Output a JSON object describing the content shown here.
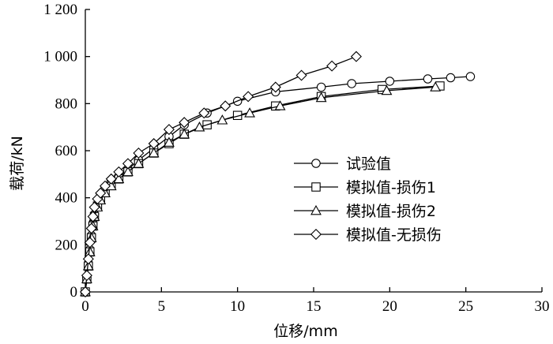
{
  "chart_data": {
    "type": "line",
    "xlabel": "位移/mm",
    "ylabel": "载荷/kN",
    "xlim": [
      0,
      30
    ],
    "ylim": [
      0,
      1200
    ],
    "xticks": [
      0,
      5,
      10,
      15,
      20,
      25,
      30
    ],
    "xtick_labels": [
      "0",
      "5",
      "10",
      "15",
      "20",
      "25",
      "30"
    ],
    "yticks": [
      0,
      200,
      400,
      600,
      800,
      1000,
      1200
    ],
    "ytick_labels": [
      "0",
      "200",
      "400",
      "600",
      "800",
      "1 000",
      "1 200"
    ],
    "grid": false,
    "legend_position": "center-right",
    "series": [
      {
        "name": "试验值",
        "marker": "circle",
        "x": [
          0,
          0.1,
          0.2,
          0.3,
          0.4,
          0.5,
          0.6,
          0.8,
          1.0,
          1.3,
          1.7,
          2.2,
          2.8,
          3.5,
          4.5,
          5.5,
          6.5,
          8.0,
          10.0,
          12.5,
          15.5,
          17.5,
          20.0,
          22.5,
          24.0,
          25.3
        ],
        "y": [
          0,
          60,
          120,
          180,
          240,
          290,
          330,
          370,
          400,
          430,
          460,
          490,
          520,
          560,
          610,
          660,
          710,
          760,
          810,
          850,
          870,
          885,
          895,
          905,
          910,
          915
        ]
      },
      {
        "name": "模拟值-损伤1",
        "marker": "square",
        "x": [
          0,
          0.1,
          0.2,
          0.3,
          0.4,
          0.5,
          0.6,
          0.8,
          1.0,
          1.3,
          1.7,
          2.2,
          2.8,
          3.5,
          4.5,
          5.5,
          6.5,
          8.0,
          10.0,
          12.5,
          15.5,
          19.5,
          23.3
        ],
        "y": [
          0,
          55,
          110,
          170,
          230,
          280,
          320,
          365,
          395,
          425,
          455,
          480,
          510,
          545,
          590,
          630,
          670,
          710,
          750,
          790,
          830,
          860,
          875
        ]
      },
      {
        "name": "模拟值-损伤2",
        "marker": "triangle",
        "x": [
          0,
          0.1,
          0.2,
          0.3,
          0.4,
          0.5,
          0.6,
          0.8,
          1.0,
          1.3,
          1.7,
          2.2,
          2.8,
          3.5,
          4.5,
          5.5,
          6.5,
          7.5,
          9.0,
          10.8,
          12.8,
          15.5,
          19.8,
          23.0
        ],
        "y": [
          0,
          55,
          110,
          170,
          230,
          280,
          320,
          360,
          390,
          420,
          450,
          480,
          510,
          545,
          590,
          635,
          670,
          700,
          730,
          760,
          790,
          825,
          855,
          870
        ]
      },
      {
        "name": "模拟值-无损伤",
        "marker": "diamond",
        "x": [
          0,
          0.1,
          0.2,
          0.3,
          0.4,
          0.5,
          0.6,
          0.8,
          1.0,
          1.3,
          1.7,
          2.2,
          2.8,
          3.5,
          4.5,
          5.5,
          6.5,
          7.8,
          9.2,
          10.7,
          12.5,
          14.2,
          16.2,
          17.8
        ],
        "y": [
          0,
          70,
          140,
          210,
          270,
          320,
          360,
          395,
          420,
          450,
          480,
          510,
          545,
          590,
          630,
          690,
          720,
          760,
          790,
          830,
          870,
          920,
          960,
          1000
        ]
      }
    ]
  }
}
